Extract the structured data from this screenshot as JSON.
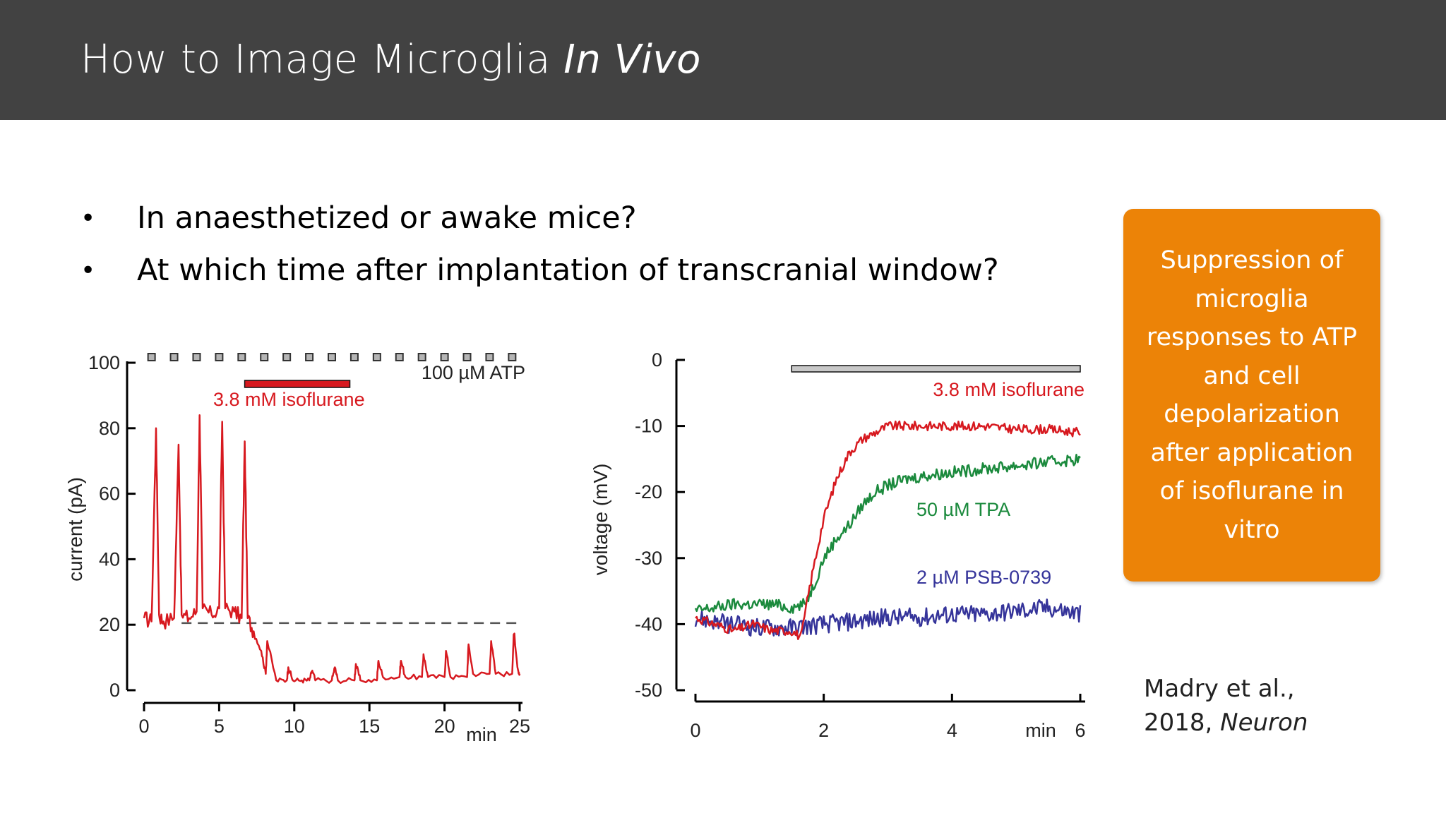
{
  "slide": {
    "title_main": "How to Image Microglia ",
    "title_italic": "In Vivo",
    "bullets": [
      "In anaesthetized or awake mice?",
      "At which time after implantation of transcranial window?"
    ],
    "bullet_glyph": "•",
    "callout": "Suppression of microglia responses to ATP and cell depolarization after application of isoflurane in vitro",
    "citation_line1": "Madry et al.,",
    "citation_line2_prefix": "2018, ",
    "citation_journal": "Neuron",
    "colors": {
      "header": "#424242",
      "callout": "#ec8307",
      "red": "#d7191f",
      "green": "#1b8a3d",
      "blue": "#35349a"
    }
  },
  "chart_data": [
    {
      "type": "line",
      "ylabel": "current (pA)",
      "xlabel": "min",
      "xlim": [
        0,
        25
      ],
      "ylim": [
        0,
        100
      ],
      "xticks": [
        0,
        5,
        10,
        15,
        20,
        25
      ],
      "yticks": [
        0,
        20,
        40,
        60,
        80,
        100
      ],
      "annotations": {
        "atp": "100 µM ATP",
        "iso": "3.8 mM isoflurane"
      },
      "atp_pulses_min": [
        0.5,
        2.0,
        3.5,
        5.0,
        6.5,
        8.0,
        9.5,
        11.0,
        12.5,
        14.0,
        15.5,
        17.0,
        18.5,
        20.0,
        21.5,
        23.0,
        24.5
      ],
      "isoflurane_bar_min": [
        6.7,
        13.7
      ],
      "baseline_pA": 20.5,
      "series": [
        {
          "x": [
            0,
            0.5,
            0.8,
            1.0,
            1.3,
            2.0,
            2.3,
            2.5,
            3.0,
            3.5,
            3.7,
            3.9,
            4.5,
            5.0,
            5.2,
            5.4,
            6.0,
            6.5,
            6.7,
            6.9,
            7.3,
            7.8,
            8.1,
            8.2,
            8.8,
            9.5,
            9.6,
            9.9,
            10.5,
            11.0,
            11.2,
            11.4,
            12.5,
            12.7,
            12.9,
            14.0,
            14.1,
            14.4,
            15.5,
            15.6,
            15.9,
            17.0,
            17.1,
            17.4,
            18.5,
            18.6,
            18.9,
            20.0,
            20.1,
            20.4,
            21.5,
            21.6,
            21.9,
            23.0,
            23.1,
            23.4,
            24.5,
            24.6,
            24.9,
            25.0
          ],
          "y": [
            22,
            21,
            80,
            23,
            21,
            22,
            75,
            23,
            22,
            24,
            84,
            25,
            23,
            25,
            82,
            25,
            24,
            22,
            76,
            22,
            18,
            12,
            5,
            15,
            3,
            3,
            7,
            3,
            3,
            3,
            6,
            3,
            3,
            7,
            3,
            3,
            8,
            3,
            3,
            9,
            4,
            4,
            9,
            4,
            4,
            11,
            4,
            4,
            12,
            4,
            4,
            14,
            5,
            5,
            15,
            5,
            5,
            17,
            6,
            5
          ]
        }
      ]
    },
    {
      "type": "line",
      "ylabel": "voltage (mV)",
      "xlabel": "min",
      "xlim": [
        0,
        6
      ],
      "ylim": [
        -50,
        0
      ],
      "xticks": [
        0,
        2,
        4,
        6
      ],
      "yticks": [
        0,
        -10,
        -20,
        -30,
        -40,
        -50
      ],
      "drug_bar_min": [
        1.5,
        6
      ],
      "series": [
        {
          "name": "3.8 mM isoflurane",
          "x": [
            0,
            0.3,
            0.6,
            0.9,
            1.2,
            1.5,
            1.65,
            1.75,
            1.85,
            2.0,
            2.2,
            2.4,
            2.6,
            2.8,
            3.0,
            3.5,
            4.0,
            4.5,
            5.0,
            5.5,
            6.0
          ],
          "y": [
            -39,
            -40,
            -41,
            -40,
            -41,
            -41,
            -42,
            -36,
            -31,
            -24,
            -18,
            -14,
            -12,
            -11,
            -10,
            -10,
            -10,
            -10,
            -10.5,
            -10.5,
            -11
          ]
        },
        {
          "name": "50 µM TPA",
          "x": [
            0,
            0.3,
            0.6,
            0.9,
            1.2,
            1.5,
            1.7,
            1.85,
            2.0,
            2.2,
            2.4,
            2.6,
            2.8,
            3.0,
            3.3,
            3.6,
            4.0,
            4.5,
            5.0,
            5.5,
            6.0
          ],
          "y": [
            -38,
            -37.5,
            -37,
            -37,
            -37,
            -37.5,
            -37,
            -34,
            -30,
            -27,
            -25,
            -22,
            -20,
            -19,
            -18,
            -17.5,
            -17,
            -16.5,
            -16,
            -15.5,
            -15
          ]
        },
        {
          "name": "2 µM PSB-0739",
          "x": [
            0,
            0.5,
            1.0,
            1.5,
            2.0,
            2.5,
            3.0,
            3.5,
            4.0,
            4.5,
            5.0,
            5.5,
            6.0
          ],
          "y": [
            -39,
            -40,
            -40.5,
            -40.5,
            -40,
            -39.5,
            -39,
            -39,
            -38.5,
            -38.5,
            -38,
            -37.5,
            -38.5
          ]
        }
      ]
    }
  ]
}
